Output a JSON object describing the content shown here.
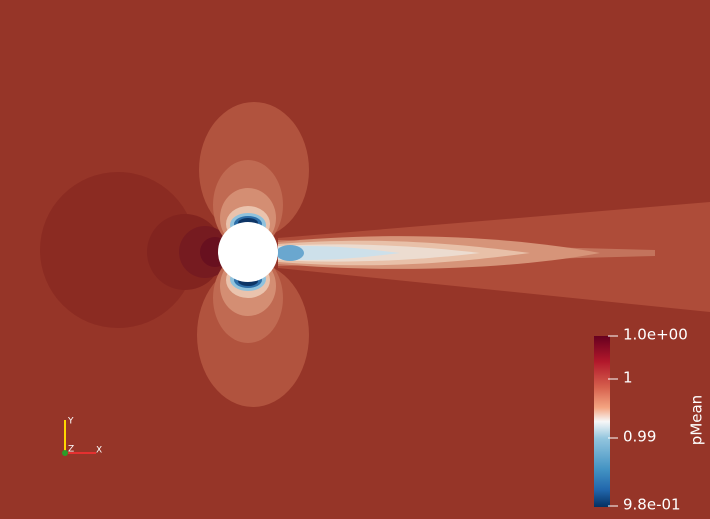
{
  "colorbar": {
    "title": "pMean",
    "ticks": [
      "1.0e+00",
      "1",
      "0.99",
      "9.8e-01"
    ]
  },
  "axes_triad": {
    "y": "Y",
    "z": "Z",
    "x": "X"
  }
}
